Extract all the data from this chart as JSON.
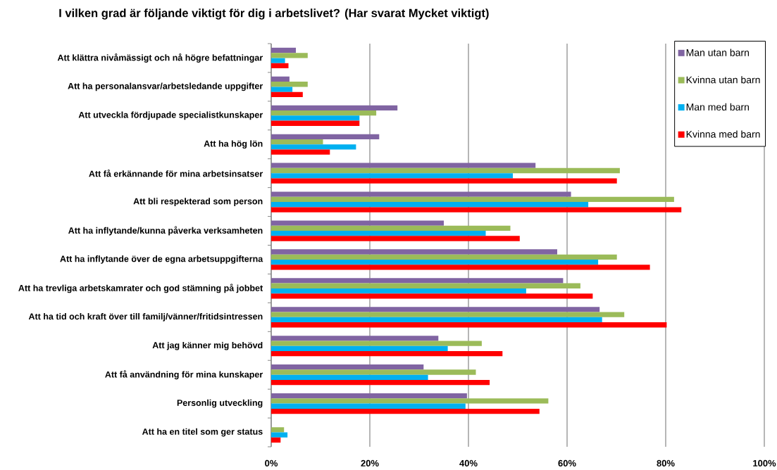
{
  "chart_data": {
    "type": "bar",
    "orientation": "horizontal",
    "title": "I vilken grad är följande viktigt för dig i arbetslivet? (Har svarat Mycket viktigt)",
    "categories": [
      "Att klättra nivåmässigt och nå högre befattningar",
      "Att ha personalansvar/arbetsledande uppgifter",
      "Att utveckla fördjupade specialistkunskaper",
      "Att ha hög lön",
      "Att få erkännande för mina arbetsinsatser",
      "Att bli respekterad som person",
      "Att ha inflytande/kunna påverka verksamheten",
      "Att ha inflytande över de egna arbetsuppgifterna",
      "Att ha trevliga arbetskamrater och god stämning på jobbet",
      "Att ha tid och kraft över till familj/vänner/fritidsintressen",
      "Att jag känner mig behövd",
      "Att få användning för mina kunskaper",
      "Personlig utveckling",
      "Att ha en titel som ger status"
    ],
    "series": [
      {
        "name": "Man utan barn",
        "color": "#8064a2",
        "values": [
          5.0,
          3.7,
          25.6,
          21.9,
          53.6,
          60.8,
          35.0,
          58.0,
          59.2,
          66.6,
          33.9,
          30.9,
          39.7,
          null
        ]
      },
      {
        "name": "Kvinna utan barn",
        "color": "#9bbb59",
        "values": [
          7.4,
          7.4,
          21.3,
          10.5,
          70.7,
          81.7,
          48.5,
          70.1,
          62.7,
          71.6,
          42.7,
          41.5,
          56.2,
          2.6
        ]
      },
      {
        "name": "Man med barn",
        "color": "#00b0f0",
        "values": [
          2.8,
          4.3,
          17.9,
          17.2,
          49.0,
          64.3,
          43.5,
          66.3,
          51.7,
          67.1,
          35.8,
          31.8,
          39.4,
          3.3
        ]
      },
      {
        "name": "Kvinna med barn",
        "color": "#ff0000",
        "values": [
          3.5,
          6.4,
          17.9,
          11.9,
          70.1,
          83.2,
          50.4,
          76.8,
          65.2,
          80.2,
          46.9,
          44.3,
          54.4,
          1.9
        ]
      }
    ],
    "xlim": [
      0,
      100
    ],
    "xticks": [
      {
        "value": 0,
        "label": "0%"
      },
      {
        "value": 20,
        "label": "20%"
      },
      {
        "value": 40,
        "label": "40%"
      },
      {
        "value": 60,
        "label": "60%"
      },
      {
        "value": 80,
        "label": "80%"
      },
      {
        "value": 100,
        "label": "100%"
      }
    ],
    "grid": "x",
    "legend": "top right"
  }
}
